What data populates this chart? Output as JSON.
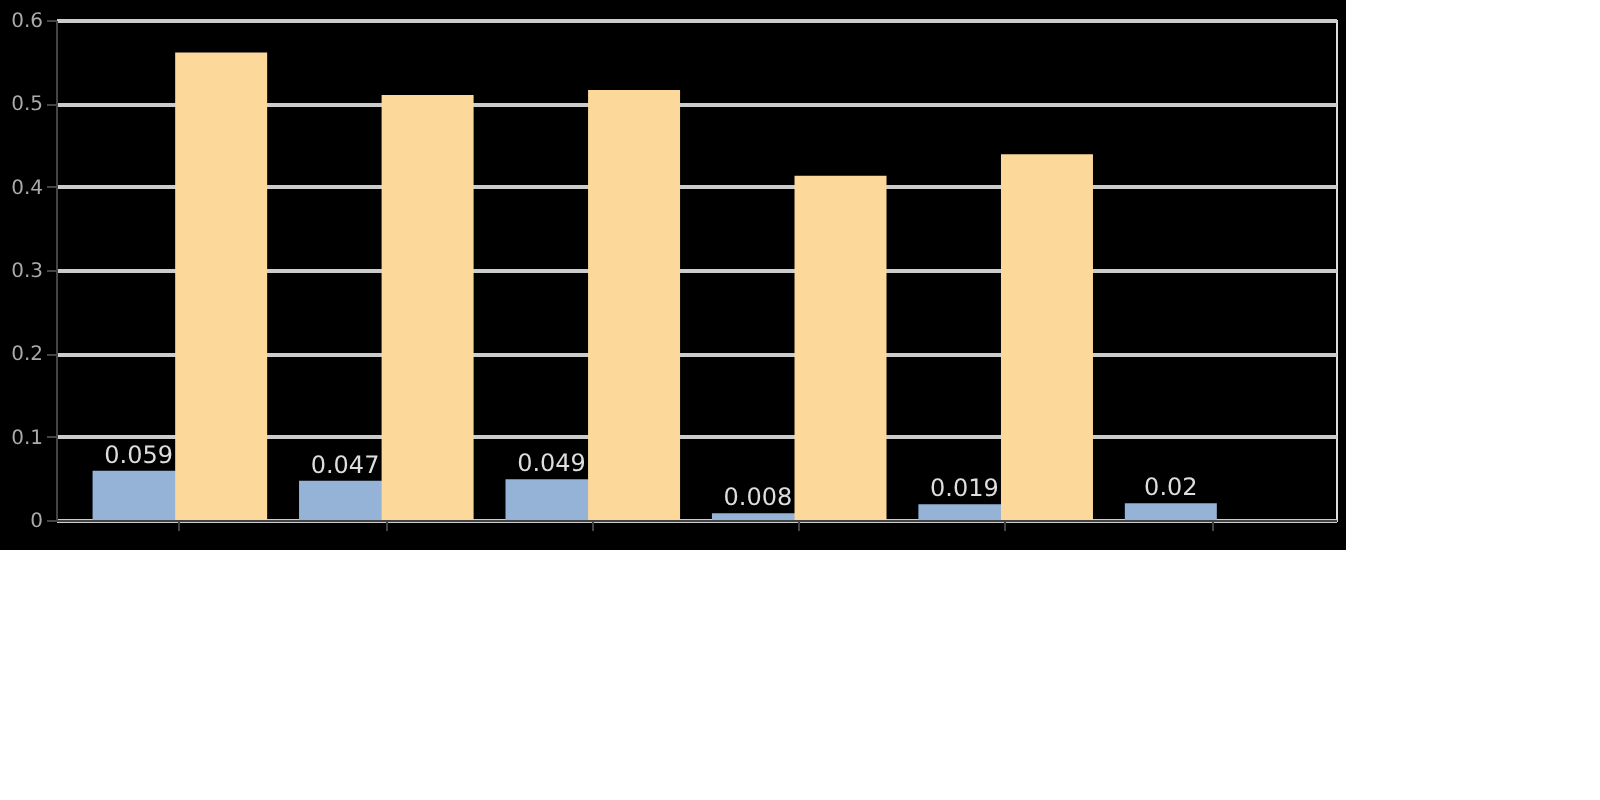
{
  "chart_data": {
    "type": "bar",
    "categories": [
      null,
      null,
      null,
      null,
      null,
      null
    ],
    "series": [
      {
        "color": "#95b3d7",
        "values": [
          0.059,
          0.047,
          0.049,
          0.008,
          0.019,
          0.02
        ],
        "value_labels": [
          "0.059",
          "0.047",
          "0.049",
          "0.008",
          "0.019",
          "0.02"
        ]
      },
      {
        "color": "#fcd89b",
        "values": [
          0.561,
          0.51,
          0.516,
          0.413,
          0.439,
          null
        ]
      }
    ],
    "ylim": [
      0,
      0.6
    ],
    "yticks": [
      0,
      0.1,
      0.2,
      0.3,
      0.4,
      0.5,
      0.6
    ],
    "grid": "y"
  }
}
